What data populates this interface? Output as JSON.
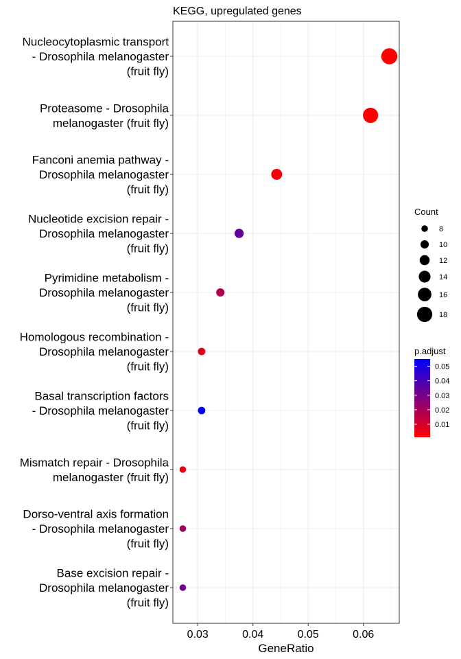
{
  "chart_data": {
    "type": "scatter",
    "title": "KEGG, upregulated genes",
    "xlabel": "GeneRatio",
    "ylabel": "",
    "xlim": [
      0.0255,
      0.0665
    ],
    "x_ticks": [
      0.03,
      0.04,
      0.05,
      0.06
    ],
    "x_tick_labels": [
      "0.03",
      "0.04",
      "0.05",
      "0.06"
    ],
    "grid": true,
    "legend_position": "right",
    "points": [
      {
        "term": [
          "Nucleocytoplasmic transport",
          "- Drosophila melanogaster",
          "(fruit fly)"
        ],
        "gene_ratio": 0.0647,
        "count": 19,
        "p_adjust": 0.001
      },
      {
        "term": [
          "Proteasome - Drosophila",
          "melanogaster (fruit fly)"
        ],
        "gene_ratio": 0.0613,
        "count": 18,
        "p_adjust": 0.001
      },
      {
        "term": [
          "Fanconi anemia pathway -",
          "Drosophila melanogaster",
          "(fruit fly)"
        ],
        "gene_ratio": 0.0443,
        "count": 13,
        "p_adjust": 0.003
      },
      {
        "term": [
          "Nucleotide excision repair -",
          "Drosophila melanogaster",
          "(fruit fly)"
        ],
        "gene_ratio": 0.0375,
        "count": 11,
        "p_adjust": 0.034
      },
      {
        "term": [
          "Pyrimidine metabolism -",
          "Drosophila melanogaster",
          "(fruit fly)"
        ],
        "gene_ratio": 0.0341,
        "count": 10,
        "p_adjust": 0.018
      },
      {
        "term": [
          "Homologous recombination -",
          "Drosophila melanogaster",
          "(fruit fly)"
        ],
        "gene_ratio": 0.0307,
        "count": 9,
        "p_adjust": 0.008
      },
      {
        "term": [
          "Basal transcription factors",
          "- Drosophila melanogaster",
          "(fruit fly)"
        ],
        "gene_ratio": 0.0307,
        "count": 9,
        "p_adjust": 0.054
      },
      {
        "term": [
          "Mismatch repair - Drosophila",
          "melanogaster (fruit fly)"
        ],
        "gene_ratio": 0.0273,
        "count": 8,
        "p_adjust": 0.006
      },
      {
        "term": [
          "Dorso-ventral axis formation",
          "- Drosophila melanogaster",
          "(fruit fly)"
        ],
        "gene_ratio": 0.0273,
        "count": 8,
        "p_adjust": 0.022
      },
      {
        "term": [
          "Base excision repair -",
          "Drosophila melanogaster",
          "(fruit fly)"
        ],
        "gene_ratio": 0.0273,
        "count": 8,
        "p_adjust": 0.031
      }
    ],
    "size_legend": {
      "title": "Count",
      "values": [
        8,
        10,
        12,
        14,
        16,
        18
      ]
    },
    "color_legend": {
      "title": "p.adjust",
      "min": 0.001,
      "max": 0.055,
      "ticks": [
        0.05,
        0.04,
        0.03,
        0.02,
        0.01
      ],
      "tick_labels": [
        "0.05",
        "0.04",
        "0.03",
        "0.02",
        "0.01"
      ],
      "low_color": "#FF0000",
      "high_color": "#0000FF"
    }
  }
}
